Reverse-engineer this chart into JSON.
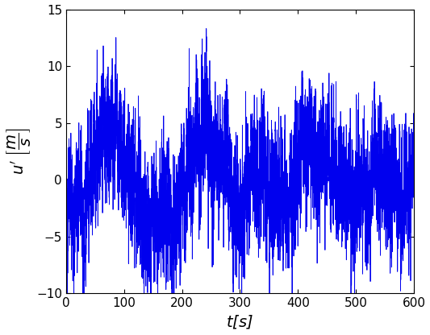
{
  "title": "",
  "xlabel": "t[s]",
  "xlim": [
    0,
    600
  ],
  "ylim": [
    -10,
    15
  ],
  "xticks": [
    0,
    100,
    200,
    300,
    400,
    500,
    600
  ],
  "yticks": [
    -10,
    -5,
    0,
    5,
    10,
    15
  ],
  "line_color": "#0000EE",
  "line_width": 0.6,
  "background_color": "#FFFFFF",
  "seed": 12345,
  "n_points": 6001,
  "duration": 600,
  "label_fontsize": 14,
  "tick_fontsize": 11
}
